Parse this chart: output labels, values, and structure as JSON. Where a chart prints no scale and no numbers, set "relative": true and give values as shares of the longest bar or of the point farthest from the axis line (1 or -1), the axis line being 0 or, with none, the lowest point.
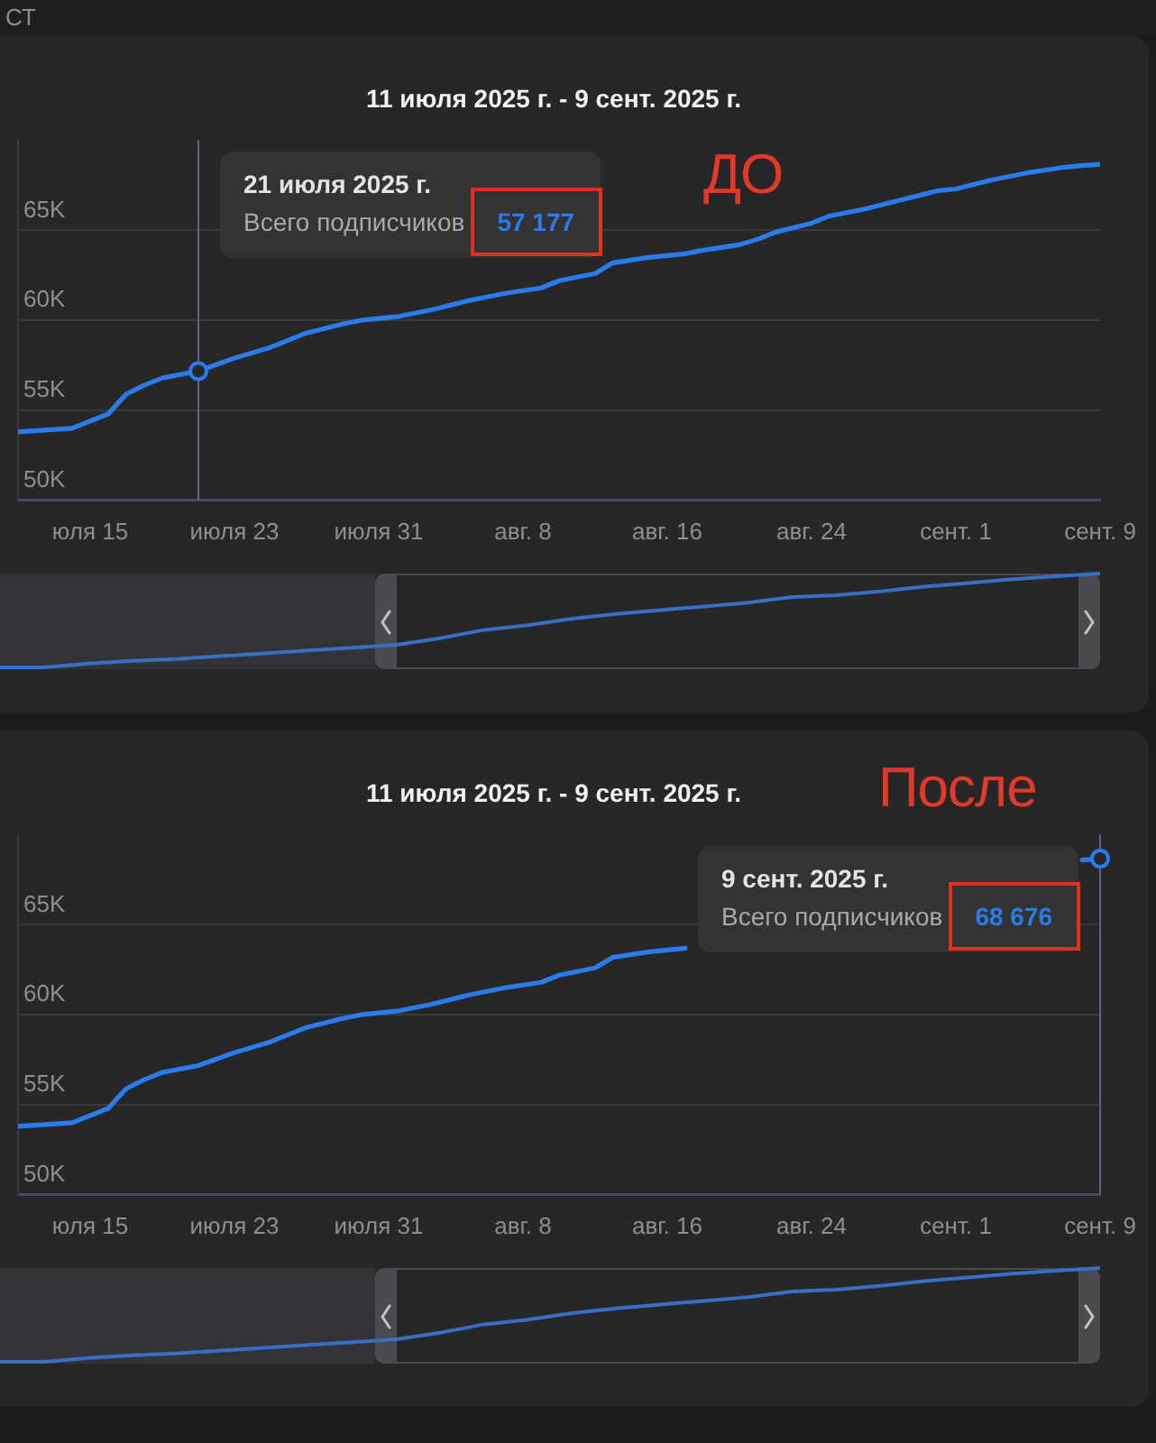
{
  "chart_data": [
    {
      "type": "line",
      "title": "11 июля 2025 г. - 9 сент. 2025 г.",
      "x": [
        "2025-07-11",
        "2025-07-14",
        "2025-07-16",
        "2025-07-17",
        "2025-07-18",
        "2025-07-19",
        "2025-07-21",
        "2025-07-23",
        "2025-07-25",
        "2025-07-27",
        "2025-07-29",
        "2025-07-30",
        "2025-08-01",
        "2025-08-03",
        "2025-08-05",
        "2025-08-07",
        "2025-08-09",
        "2025-08-10",
        "2025-08-12",
        "2025-08-13",
        "2025-08-15",
        "2025-08-17",
        "2025-08-18",
        "2025-08-20",
        "2025-08-21",
        "2025-08-22",
        "2025-08-24",
        "2025-08-25",
        "2025-08-27",
        "2025-08-29",
        "2025-08-31",
        "2025-09-01",
        "2025-09-03",
        "2025-09-05",
        "2025-09-07",
        "2025-09-08",
        "2025-09-09"
      ],
      "values": [
        53800,
        54000,
        54800,
        55900,
        56400,
        56800,
        57177,
        57900,
        58500,
        59300,
        59800,
        60000,
        60200,
        60600,
        61100,
        61500,
        61800,
        62200,
        62600,
        63200,
        63500,
        63700,
        63900,
        64200,
        64500,
        64900,
        65400,
        65800,
        66200,
        66700,
        67200,
        67300,
        67800,
        68200,
        68500,
        68600,
        68676
      ],
      "color": "#2a7cec",
      "marker": "none",
      "grid": "y",
      "xlim": [
        "2025-07-11",
        "2025-09-09"
      ],
      "xticks": [
        {
          "value": "2025-07-15",
          "label": "юля 15"
        },
        {
          "value": "2025-07-23",
          "label": "июля 23"
        },
        {
          "value": "2025-07-31",
          "label": "июля 31"
        },
        {
          "value": "2025-08-08",
          "label": "авг. 8"
        },
        {
          "value": "2025-08-16",
          "label": "авг. 16"
        },
        {
          "value": "2025-08-24",
          "label": "авг. 24"
        },
        {
          "value": "2025-09-01",
          "label": "сент. 1"
        },
        {
          "value": "2025-09-09",
          "label": "сент. 9"
        }
      ],
      "ylim": [
        50000,
        70000
      ],
      "yticks": [
        {
          "value": 50000,
          "label": "50K"
        },
        {
          "value": 55000,
          "label": "55K"
        },
        {
          "value": 60000,
          "label": "60K"
        },
        {
          "value": 65000,
          "label": "65K"
        }
      ],
      "ref_lines": [
        {
          "axis": "x",
          "value": "2025-07-21",
          "color": "#6a5a8c"
        }
      ],
      "annotations": [
        "21 июля 2025 г.",
        "Всего подписчиков",
        "57 177",
        "СТ",
        "ДО"
      ]
    },
    {
      "type": "line",
      "relative": true,
      "marker": "none",
      "color": "#3a6dc4",
      "categories": [
        null,
        null,
        null,
        null,
        null,
        null,
        null,
        null,
        null,
        null,
        null,
        null,
        null,
        null,
        null,
        null,
        null,
        null,
        null,
        null,
        null,
        null,
        null,
        null,
        null,
        null
      ],
      "values": [
        0,
        0,
        0.04,
        0.07,
        0.09,
        0.12,
        0.15,
        0.18,
        0.21,
        0.24,
        0.31,
        0.4,
        0.45,
        0.52,
        0.57,
        0.61,
        0.65,
        0.69,
        0.75,
        0.77,
        0.81,
        0.86,
        0.9,
        0.94,
        0.97,
        1
      ]
    },
    {
      "type": "line",
      "title": "11 июля 2025 г. - 9 сент. 2025 г.",
      "x": [
        "2025-07-11",
        "2025-07-14",
        "2025-07-16",
        "2025-07-17",
        "2025-07-18",
        "2025-07-19",
        "2025-07-21",
        "2025-07-23",
        "2025-07-25",
        "2025-07-27",
        "2025-07-29",
        "2025-07-30",
        "2025-08-01",
        "2025-08-03",
        "2025-08-05",
        "2025-08-07",
        "2025-08-09",
        "2025-08-10",
        "2025-08-12",
        "2025-08-13",
        "2025-08-15",
        "2025-08-17",
        "2025-08-18",
        "2025-08-20",
        "2025-08-21",
        "2025-08-22",
        "2025-08-24",
        "2025-08-25",
        "2025-08-27",
        "2025-08-29",
        "2025-08-31",
        "2025-09-01",
        "2025-09-03",
        "2025-09-05",
        "2025-09-07",
        "2025-09-08",
        "2025-09-09"
      ],
      "values": [
        53800,
        54000,
        54800,
        55900,
        56400,
        56800,
        57177,
        57900,
        58500,
        59300,
        59800,
        60000,
        60200,
        60600,
        61100,
        61500,
        61800,
        62200,
        62600,
        63200,
        63500,
        63700,
        null,
        null,
        null,
        null,
        null,
        null,
        null,
        null,
        null,
        null,
        null,
        null,
        null,
        68600,
        68676
      ],
      "color": "#2a7cec",
      "marker": "none",
      "grid": "y",
      "xlim": [
        "2025-07-11",
        "2025-09-09"
      ],
      "xticks": [
        {
          "value": "2025-07-15",
          "label": "юля 15"
        },
        {
          "value": "2025-07-23",
          "label": "июля 23"
        },
        {
          "value": "2025-07-31",
          "label": "июля 31"
        },
        {
          "value": "2025-08-08",
          "label": "авг. 8"
        },
        {
          "value": "2025-08-16",
          "label": "авг. 16"
        },
        {
          "value": "2025-08-24",
          "label": "авг. 24"
        },
        {
          "value": "2025-09-01",
          "label": "сент. 1"
        },
        {
          "value": "2025-09-09",
          "label": "сент. 9"
        }
      ],
      "ylim": [
        50000,
        70000
      ],
      "yticks": [
        {
          "value": 50000,
          "label": "50K"
        },
        {
          "value": 55000,
          "label": "55K"
        },
        {
          "value": 60000,
          "label": "60K"
        },
        {
          "value": 65000,
          "label": "65K"
        }
      ],
      "ref_lines": [
        {
          "axis": "x",
          "value": "2025-09-09",
          "color": "#6a5a8c"
        }
      ],
      "annotations": [
        "9 сент. 2025 г.",
        "Всего подписчиков",
        "68 676",
        "После"
      ]
    },
    {
      "type": "line",
      "relative": true,
      "marker": "none",
      "color": "#3a6dc4",
      "categories": [
        null,
        null,
        null,
        null,
        null,
        null,
        null,
        null,
        null,
        null,
        null,
        null,
        null,
        null,
        null,
        null,
        null,
        null,
        null,
        null,
        null,
        null,
        null,
        null,
        null,
        null
      ],
      "values": [
        0,
        0,
        0.04,
        0.07,
        0.09,
        0.12,
        0.15,
        0.18,
        0.21,
        0.24,
        0.31,
        0.4,
        0.45,
        0.52,
        0.57,
        0.61,
        0.65,
        0.69,
        0.75,
        0.77,
        0.81,
        0.86,
        0.9,
        0.94,
        0.97,
        1
      ]
    }
  ]
}
